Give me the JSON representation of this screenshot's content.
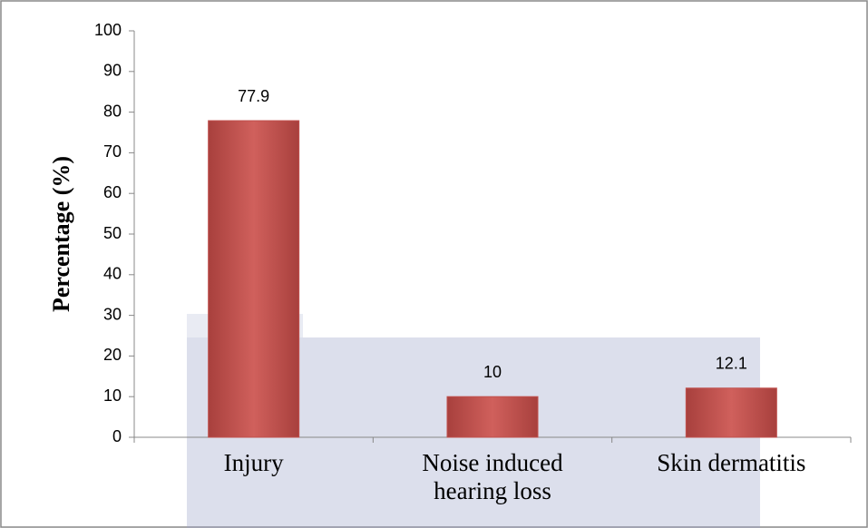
{
  "chart_data": {
    "type": "bar",
    "y_label": "Percentage (%)",
    "categories": [
      "Injury",
      "Noise induced hearing loss",
      "Skin dermatitis"
    ],
    "values": [
      77.9,
      10,
      12.1
    ],
    "color": "#c0504d",
    "ylim": [
      0,
      100
    ],
    "yticks": [
      0,
      10,
      20,
      30,
      40,
      50,
      60,
      70,
      80,
      90,
      100
    ],
    "grid": false
  }
}
